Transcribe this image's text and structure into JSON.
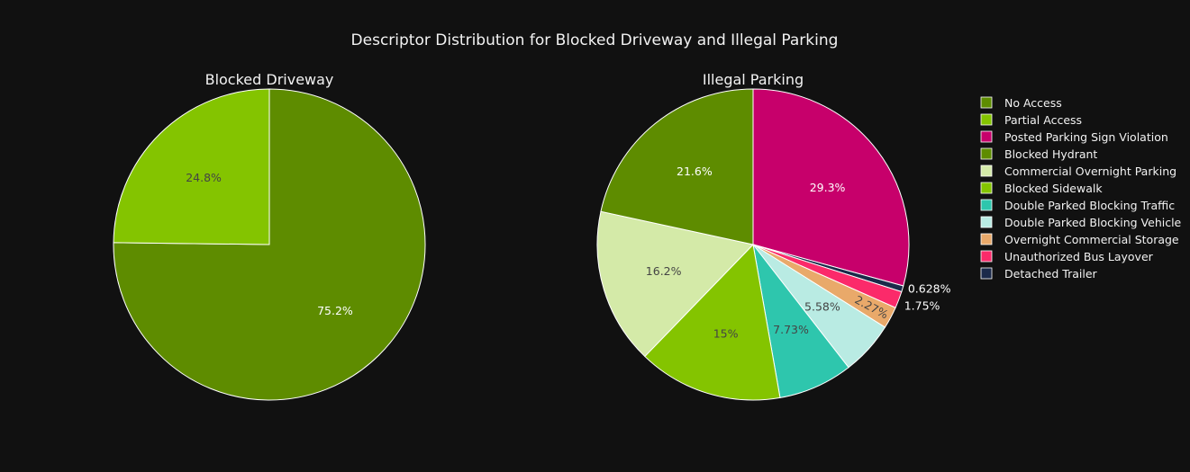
{
  "chart_data": {
    "type": "pie",
    "title": "Descriptor Distribution for Blocked Driveway and Illegal Parking",
    "legend_position": "right",
    "colors": {
      "No Access": "#5e8c00",
      "Partial Access": "#84c400",
      "Posted Parking Sign Violation": "#c7006b",
      "Blocked Hydrant": "#5e8c00",
      "Commercial Overnight Parking": "#d4eaa8",
      "Blocked Sidewalk": "#84c400",
      "Double Parked Blocking Traffic": "#2ec6ad",
      "Double Parked Blocking Vehicle": "#b9ebe3",
      "Overnight Commercial Storage": "#e9a96a",
      "Unauthorized Bus Layover": "#fb2a6a",
      "Detached Trailer": "#1b2a4a"
    },
    "legend": [
      "No Access",
      "Partial Access",
      "Posted Parking Sign Violation",
      "Blocked Hydrant",
      "Commercial Overnight Parking",
      "Blocked Sidewalk",
      "Double Parked Blocking Traffic",
      "Double Parked Blocking Vehicle",
      "Overnight Commercial Storage",
      "Unauthorized Bus Layover",
      "Detached Trailer"
    ],
    "pies": [
      {
        "title": "Blocked Driveway",
        "slices": [
          {
            "label": "No Access",
            "value": 75.2,
            "text": "75.2%",
            "text_color": "#ffffff"
          },
          {
            "label": "Partial Access",
            "value": 24.8,
            "text": "24.8%",
            "text_color": "#444444"
          }
        ]
      },
      {
        "title": "Illegal Parking",
        "slices": [
          {
            "label": "Posted Parking Sign Violation",
            "value": 29.3,
            "text": "29.3%",
            "text_color": "#ffffff"
          },
          {
            "label": "Detached Trailer",
            "value": 0.628,
            "text": "0.628%",
            "text_color": "#ffffff",
            "outside": true
          },
          {
            "label": "Unauthorized Bus Layover",
            "value": 1.75,
            "text": "1.75%",
            "text_color": "#ffffff",
            "outside": true
          },
          {
            "label": "Overnight Commercial Storage",
            "value": 2.27,
            "text": "2.27%",
            "text_color": "#444444"
          },
          {
            "label": "Double Parked Blocking Vehicle",
            "value": 5.58,
            "text": "5.58%",
            "text_color": "#444444"
          },
          {
            "label": "Double Parked Blocking Traffic",
            "value": 7.73,
            "text": "7.73%",
            "text_color": "#444444"
          },
          {
            "label": "Blocked Sidewalk",
            "value": 15.0,
            "text": "15%",
            "text_color": "#444444"
          },
          {
            "label": "Commercial Overnight Parking",
            "value": 16.2,
            "text": "16.2%",
            "text_color": "#444444"
          },
          {
            "label": "Blocked Hydrant",
            "value": 21.6,
            "text": "21.6%",
            "text_color": "#ffffff"
          }
        ]
      }
    ]
  }
}
